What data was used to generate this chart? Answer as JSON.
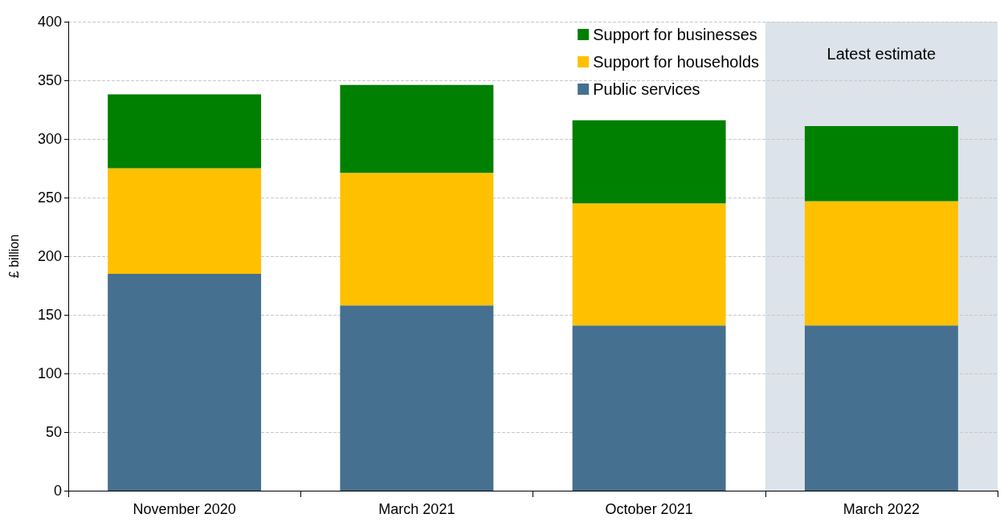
{
  "chart_data": {
    "type": "bar",
    "stacked": true,
    "ylabel": "£ billion",
    "categories": [
      "November 2020",
      "March 2021",
      "October 2021",
      "March 2022"
    ],
    "series": [
      {
        "name": "Public services",
        "color": "#46708f",
        "values": [
          185,
          158,
          141,
          141
        ]
      },
      {
        "name": "Support for households",
        "color": "#ffc000",
        "values": [
          90,
          113,
          104,
          106
        ]
      },
      {
        "name": "Support for businesses",
        "color": "#008000",
        "values": [
          63,
          75,
          71,
          64
        ]
      }
    ],
    "ylim": [
      0,
      400
    ],
    "yticks": [
      0,
      50,
      100,
      150,
      200,
      250,
      300,
      350,
      400
    ],
    "grid": "y",
    "legend": "top right",
    "bands": [
      {
        "axis": "x",
        "from": "March 2022",
        "to": "March 2022",
        "label": "Latest estimate",
        "color": "#dce3ea"
      }
    ]
  }
}
